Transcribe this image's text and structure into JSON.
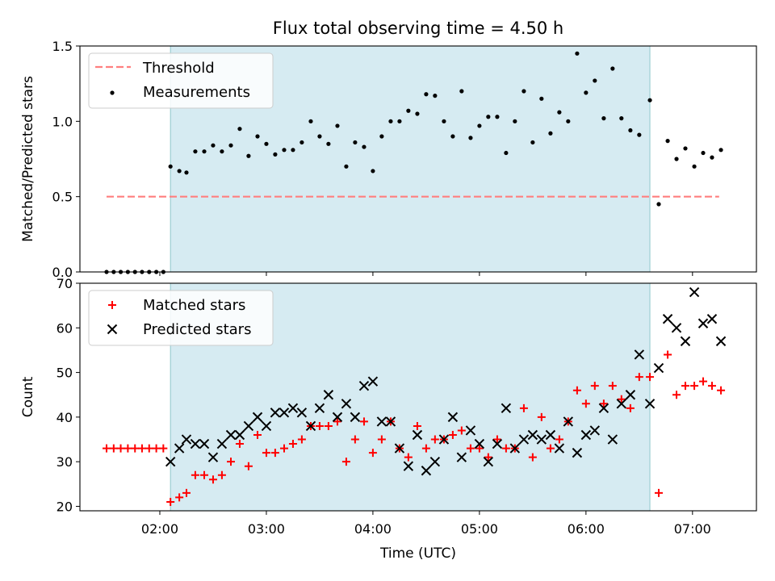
{
  "chart_data": {
    "title": "Flux total observing time = 4.50 h",
    "xlabel": "Time (UTC)",
    "x_unit": "hours UTC",
    "xlim": [
      1.25,
      7.6
    ],
    "xticks": [
      2,
      3,
      4,
      5,
      6,
      7
    ],
    "xtick_labels": [
      "02:00",
      "03:00",
      "04:00",
      "05:00",
      "06:00",
      "07:00"
    ],
    "shaded_interval": [
      2.1,
      6.6
    ],
    "colors": {
      "shade": "#add8e6",
      "threshold": "#ff7f7f",
      "measurements": "#000000",
      "matched": "#ff0000",
      "predicted": "#000000"
    },
    "panels": [
      {
        "type": "scatter",
        "ylabel": "Matched/Predicted stars",
        "ylim": [
          0,
          1.5
        ],
        "yticks": [
          0.0,
          0.5,
          1.0,
          1.5
        ],
        "ytick_labels": [
          "0.0",
          "0.5",
          "1.0",
          "1.5"
        ],
        "legend_position": "upper-left",
        "threshold": {
          "name": "Threshold",
          "value": 0.5,
          "x_range": [
            1.5,
            7.25
          ]
        },
        "series": [
          {
            "name": "Measurements",
            "marker": "dot",
            "x": [
              1.5,
              1.567,
              1.633,
              1.7,
              1.767,
              1.833,
              1.9,
              1.967,
              2.033,
              2.1,
              2.183,
              2.25,
              2.333,
              2.417,
              2.5,
              2.583,
              2.667,
              2.75,
              2.833,
              2.917,
              3.0,
              3.083,
              3.167,
              3.25,
              3.333,
              3.417,
              3.5,
              3.583,
              3.667,
              3.75,
              3.833,
              3.917,
              4.0,
              4.083,
              4.167,
              4.25,
              4.333,
              4.417,
              4.5,
              4.583,
              4.667,
              4.75,
              4.833,
              4.917,
              5.0,
              5.083,
              5.167,
              5.25,
              5.333,
              5.417,
              5.5,
              5.583,
              5.667,
              5.75,
              5.833,
              5.917,
              6.0,
              6.083,
              6.167,
              6.25,
              6.333,
              6.417,
              6.5,
              6.6,
              6.683,
              6.767,
              6.85,
              6.933,
              7.017,
              7.1,
              7.183,
              7.267
            ],
            "y": [
              0,
              0,
              0,
              0,
              0,
              0,
              0,
              0,
              0,
              0.7,
              0.67,
              0.66,
              0.8,
              0.8,
              0.84,
              0.8,
              0.84,
              0.95,
              0.77,
              0.9,
              0.85,
              0.78,
              0.81,
              0.81,
              0.86,
              1.0,
              0.9,
              0.85,
              0.97,
              0.7,
              0.86,
              0.83,
              0.67,
              0.9,
              1.0,
              1.0,
              1.07,
              1.05,
              1.18,
              1.17,
              1.0,
              0.9,
              1.2,
              0.89,
              0.97,
              1.03,
              1.03,
              0.79,
              1.0,
              1.2,
              0.86,
              1.15,
              0.92,
              1.06,
              1.0,
              1.45,
              1.19,
              1.27,
              1.02,
              1.35,
              1.02,
              0.94,
              0.91,
              1.14,
              0.45,
              0.87,
              0.75,
              0.82,
              0.7,
              0.79,
              0.76,
              0.81
            ]
          }
        ]
      },
      {
        "type": "scatter",
        "ylabel": "Count",
        "ylim": [
          19,
          70
        ],
        "yticks": [
          20,
          30,
          40,
          50,
          60,
          70
        ],
        "ytick_labels": [
          "20",
          "30",
          "40",
          "50",
          "60",
          "70"
        ],
        "legend_position": "upper-left",
        "series": [
          {
            "name": "Matched stars",
            "marker": "plus",
            "x": [
              1.5,
              1.567,
              1.633,
              1.7,
              1.767,
              1.833,
              1.9,
              1.967,
              2.033,
              2.1,
              2.183,
              2.25,
              2.333,
              2.417,
              2.5,
              2.583,
              2.667,
              2.75,
              2.833,
              2.917,
              3.0,
              3.083,
              3.167,
              3.25,
              3.333,
              3.417,
              3.5,
              3.583,
              3.667,
              3.75,
              3.833,
              3.917,
              4.0,
              4.083,
              4.167,
              4.25,
              4.333,
              4.417,
              4.5,
              4.583,
              4.667,
              4.75,
              4.833,
              4.917,
              5.0,
              5.083,
              5.167,
              5.25,
              5.333,
              5.417,
              5.5,
              5.583,
              5.667,
              5.75,
              5.833,
              5.917,
              6.0,
              6.083,
              6.167,
              6.25,
              6.333,
              6.417,
              6.5,
              6.6,
              6.683,
              6.767,
              6.85,
              6.933,
              7.017,
              7.1,
              7.183,
              7.267
            ],
            "y": [
              33,
              33,
              33,
              33,
              33,
              33,
              33,
              33,
              33,
              21,
              22,
              23,
              27,
              27,
              26,
              27,
              30,
              34,
              29,
              36,
              32,
              32,
              33,
              34,
              35,
              38,
              38,
              38,
              39,
              30,
              35,
              39,
              32,
              35,
              39,
              33,
              31,
              38,
              33,
              35,
              35,
              36,
              37,
              33,
              33,
              31,
              35,
              33,
              33,
              42,
              31,
              40,
              33,
              35,
              39,
              46,
              43,
              47,
              43,
              47,
              44,
              42,
              49,
              49,
              23,
              54,
              45,
              47,
              47,
              48,
              47,
              46
            ]
          },
          {
            "name": "Predicted stars",
            "marker": "x",
            "x": [
              2.1,
              2.183,
              2.25,
              2.333,
              2.417,
              2.5,
              2.583,
              2.667,
              2.75,
              2.833,
              2.917,
              3.0,
              3.083,
              3.167,
              3.25,
              3.333,
              3.417,
              3.5,
              3.583,
              3.667,
              3.75,
              3.833,
              3.917,
              4.0,
              4.083,
              4.167,
              4.25,
              4.333,
              4.417,
              4.5,
              4.583,
              4.667,
              4.75,
              4.833,
              4.917,
              5.0,
              5.083,
              5.167,
              5.25,
              5.333,
              5.417,
              5.5,
              5.583,
              5.667,
              5.75,
              5.833,
              5.917,
              6.0,
              6.083,
              6.167,
              6.25,
              6.333,
              6.417,
              6.5,
              6.6,
              6.683,
              6.767,
              6.85,
              6.933,
              7.017,
              7.1,
              7.183,
              7.267
            ],
            "y": [
              30,
              33,
              35,
              34,
              34,
              31,
              34,
              36,
              36,
              38,
              40,
              38,
              41,
              41,
              42,
              41,
              38,
              42,
              45,
              40,
              43,
              40,
              47,
              48,
              39,
              39,
              33,
              29,
              36,
              28,
              30,
              35,
              40,
              31,
              37,
              34,
              30,
              34,
              42,
              33,
              35,
              36,
              35,
              36,
              33,
              39,
              32,
              36,
              37,
              42,
              35,
              43,
              45,
              54,
              43,
              51,
              62,
              60,
              57,
              68,
              61,
              62,
              57
            ]
          }
        ]
      }
    ]
  }
}
